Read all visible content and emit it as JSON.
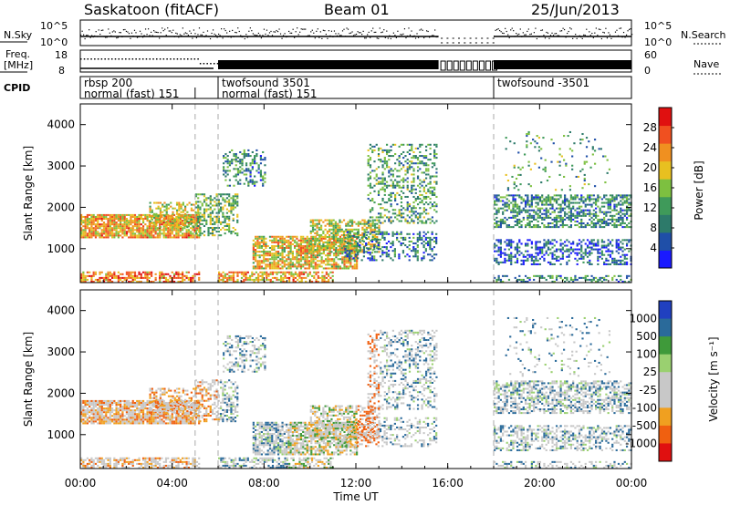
{
  "header": {
    "station": "Saskatoon (fitACF)",
    "beam": "Beam 01",
    "date": "25/Jun/2013"
  },
  "panels": {
    "nsky": {
      "label": "N.Sky",
      "ytick_top": "10^5",
      "ytick_bottom": "10^0",
      "right_label": "N.Search",
      "right_top": "10^5",
      "right_bottom": "10^0"
    },
    "freq": {
      "label_line1": "Freq.",
      "label_line2": "[MHz]",
      "ytick_top": "18",
      "ytick_bottom": "8",
      "right_label": "Nave",
      "right_top": "60",
      "right_bottom": "0"
    },
    "cpid": {
      "label": "CPID"
    }
  },
  "cpid_segments": [
    {
      "start_h": 0.0,
      "line1": "rbsp 200",
      "line2": "normal (fast) 151"
    },
    {
      "start_h": 6.0,
      "line1": "twofsound 3501",
      "line2": "normal (fast) 151"
    },
    {
      "start_h": 18.0,
      "line1": "twofsound -3501",
      "line2": ""
    }
  ],
  "chart_data": [
    {
      "type": "heatmap",
      "name": "power",
      "ylabel": "Slant Range [km]",
      "ylim": [
        180,
        4500
      ],
      "yticks": [
        1000,
        2000,
        3000,
        4000
      ],
      "colorbar": {
        "label": "Power [dB]",
        "range": [
          0,
          32
        ],
        "ticks": [
          4,
          8,
          12,
          16,
          20,
          24,
          28
        ]
      },
      "data_gap_h": [
        15.6,
        18.0
      ],
      "dashed_markers_h": [
        5.0,
        6.0,
        18.0
      ]
    },
    {
      "type": "heatmap",
      "name": "velocity",
      "ylabel": "Slant Range [km]",
      "ylim": [
        180,
        4500
      ],
      "yticks": [
        1000,
        2000,
        3000,
        4000
      ],
      "colorbar": {
        "label": "Velocity [m s⁻¹]",
        "ticks": [
          1000,
          500,
          100,
          25,
          -25,
          -100,
          -500,
          -1000
        ]
      },
      "data_gap_h": [
        15.6,
        18.0
      ],
      "dashed_markers_h": [
        5.0,
        6.0,
        18.0
      ]
    }
  ],
  "xaxis": {
    "label": "Time UT",
    "ticks": [
      "00:00",
      "04:00",
      "08:00",
      "12:00",
      "16:00",
      "20:00",
      "00:00"
    ],
    "tick_hours": [
      0,
      4,
      8,
      12,
      16,
      20,
      24
    ]
  },
  "colors": {
    "power": [
      "#1a1aff",
      "#1f4fa8",
      "#2d7a6a",
      "#3f9a5a",
      "#7dc040",
      "#e8c020",
      "#f09020",
      "#f05020",
      "#e01010"
    ],
    "velocity": [
      "#e01010",
      "#f06010",
      "#f0a020",
      "#c8c8c8",
      "#c8c8c8",
      "#9ad070",
      "#3f9a3a",
      "#2a6a9a",
      "#2040c0"
    ]
  }
}
